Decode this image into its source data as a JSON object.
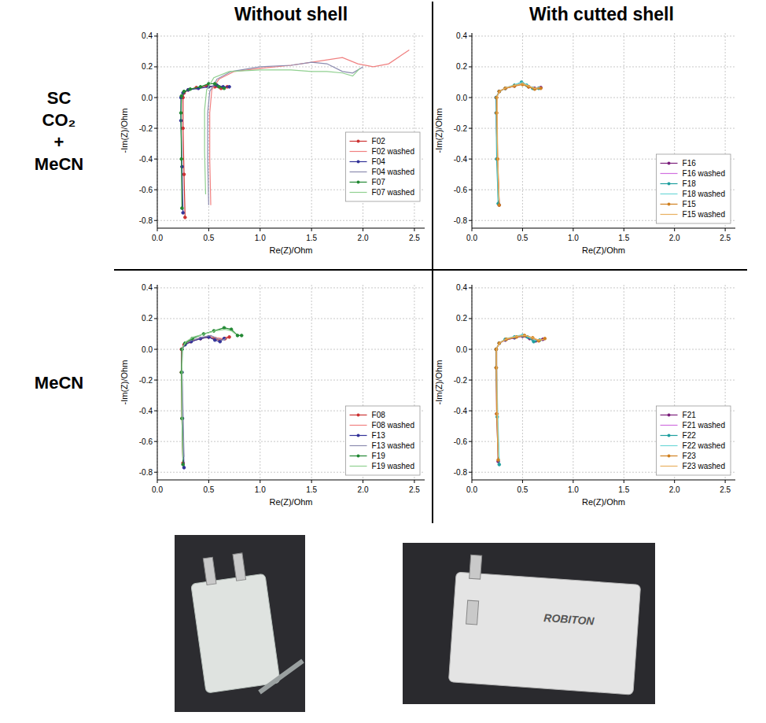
{
  "headers": {
    "columns": [
      "Without shell",
      "With cutted shell"
    ],
    "rows": [
      "SC CO₂ + MeCN",
      "MeCN"
    ]
  },
  "photos": {
    "texts": [
      "ROBITON"
    ]
  },
  "chart_data": [
    {
      "type": "line",
      "x_label": "Re(Z)/Ohm",
      "y_label": "-Im(Z)/Ohm",
      "xlim": [
        0,
        2.6
      ],
      "ylim": [
        -0.85,
        0.42
      ],
      "xticks": [
        {
          "value": 0,
          "label": "0.0"
        },
        0.5,
        {
          "value": 1,
          "label": "1.0"
        },
        1.5,
        {
          "value": 2,
          "label": "2.0"
        },
        2.5
      ],
      "yticks": [
        0.4,
        0.2,
        {
          "value": 0,
          "label": "0.0"
        },
        -0.2,
        -0.4,
        -0.6,
        -0.8
      ],
      "grid": true,
      "legend": "right",
      "series": [
        {
          "name": "F02",
          "color": "#cc3333",
          "marker": "circle",
          "line_style": "solid",
          "x": [
            0.27,
            0.26,
            0.25,
            0.25,
            0.26,
            0.3,
            0.38,
            0.48,
            0.56,
            0.62,
            0.68
          ],
          "values": [
            -0.78,
            -0.5,
            -0.2,
            0.0,
            0.03,
            0.05,
            0.065,
            0.075,
            0.07,
            0.06,
            0.07
          ]
        },
        {
          "name": "F02 washed",
          "color": "#f08080",
          "marker": "none",
          "line_style": "solid",
          "x": [
            0.52,
            0.51,
            0.51,
            0.53,
            0.6,
            0.75,
            1.0,
            1.3,
            1.6,
            1.8,
            1.95,
            2.1,
            2.25,
            2.45
          ],
          "values": [
            -0.7,
            -0.4,
            -0.1,
            0.05,
            0.12,
            0.17,
            0.19,
            0.21,
            0.24,
            0.26,
            0.22,
            0.2,
            0.22,
            0.31
          ]
        },
        {
          "name": "F04",
          "color": "#333399",
          "marker": "circle",
          "line_style": "solid",
          "x": [
            0.25,
            0.24,
            0.23,
            0.23,
            0.25,
            0.3,
            0.4,
            0.5,
            0.58,
            0.64,
            0.7
          ],
          "values": [
            -0.75,
            -0.45,
            -0.15,
            0.0,
            0.03,
            0.05,
            0.06,
            0.07,
            0.08,
            0.07,
            0.07
          ]
        },
        {
          "name": "F04 washed",
          "color": "#8c8cb0",
          "marker": "none",
          "line_style": "solid",
          "x": [
            0.5,
            0.49,
            0.49,
            0.51,
            0.58,
            0.72,
            1.0,
            1.3,
            1.5,
            1.65,
            1.8,
            1.9,
            2.0
          ],
          "values": [
            -0.7,
            -0.4,
            -0.1,
            0.04,
            0.12,
            0.17,
            0.2,
            0.21,
            0.23,
            0.22,
            0.17,
            0.16,
            0.2
          ]
        },
        {
          "name": "F07",
          "color": "#228833",
          "marker": "circle",
          "line_style": "solid",
          "x": [
            0.24,
            0.235,
            0.23,
            0.235,
            0.26,
            0.32,
            0.42,
            0.5,
            0.56,
            0.6,
            0.65
          ],
          "values": [
            -0.72,
            -0.4,
            -0.1,
            0.01,
            0.04,
            0.055,
            0.07,
            0.09,
            0.09,
            0.07,
            0.06
          ]
        },
        {
          "name": "F07 washed",
          "color": "#90d090",
          "marker": "none",
          "line_style": "solid",
          "x": [
            0.47,
            0.46,
            0.46,
            0.48,
            0.55,
            0.7,
            1.0,
            1.3,
            1.5,
            1.65,
            1.8,
            1.9,
            1.97
          ],
          "values": [
            -0.63,
            -0.35,
            -0.08,
            0.05,
            0.13,
            0.17,
            0.18,
            0.18,
            0.17,
            0.17,
            0.16,
            0.14,
            0.19
          ]
        }
      ]
    },
    {
      "type": "line",
      "x_label": "Re(Z)/Ohm",
      "y_label": "-Im(Z)/Ohm",
      "xlim": [
        0,
        2.6
      ],
      "ylim": [
        -0.85,
        0.42
      ],
      "xticks": [
        {
          "value": 0,
          "label": "0.0"
        },
        0.5,
        {
          "value": 1,
          "label": "1.0"
        },
        1.5,
        {
          "value": 2,
          "label": "2.0"
        },
        2.5
      ],
      "yticks": [
        0.4,
        0.2,
        {
          "value": 0,
          "label": "0.0"
        },
        -0.2,
        -0.4,
        -0.6,
        -0.8
      ],
      "grid": true,
      "legend": "lower right",
      "series": [
        {
          "name": "F16",
          "color": "#7b1f7b",
          "marker": "circle",
          "line_style": "solid",
          "x": [
            0.27,
            0.25,
            0.24,
            0.24,
            0.27,
            0.33,
            0.42,
            0.5,
            0.56,
            0.62,
            0.68
          ],
          "values": [
            -0.7,
            -0.4,
            -0.1,
            0.0,
            0.04,
            0.06,
            0.075,
            0.09,
            0.07,
            0.06,
            0.065
          ]
        },
        {
          "name": "F16 washed",
          "color": "#d070e0",
          "marker": "none",
          "line_style": "solid",
          "x": [
            0.27,
            0.25,
            0.245,
            0.245,
            0.28,
            0.34,
            0.43,
            0.5,
            0.56,
            0.62,
            0.67
          ],
          "values": [
            -0.68,
            -0.38,
            -0.1,
            0.01,
            0.045,
            0.065,
            0.08,
            0.095,
            0.075,
            0.06,
            0.07
          ]
        },
        {
          "name": "F18",
          "color": "#1f9f9f",
          "marker": "circle",
          "line_style": "solid",
          "x": [
            0.26,
            0.245,
            0.24,
            0.24,
            0.27,
            0.33,
            0.42,
            0.49,
            0.54,
            0.6,
            0.66
          ],
          "values": [
            -0.69,
            -0.4,
            -0.1,
            0.0,
            0.04,
            0.06,
            0.08,
            0.1,
            0.08,
            0.06,
            0.06
          ]
        },
        {
          "name": "F18 washed",
          "color": "#70d8d8",
          "marker": "none",
          "line_style": "solid",
          "x": [
            0.26,
            0.25,
            0.24,
            0.245,
            0.28,
            0.34,
            0.43,
            0.5,
            0.55,
            0.6,
            0.65
          ],
          "values": [
            -0.67,
            -0.38,
            -0.09,
            0.01,
            0.045,
            0.065,
            0.085,
            0.1,
            0.08,
            0.065,
            0.06
          ]
        },
        {
          "name": "F15",
          "color": "#d08020",
          "marker": "circle",
          "line_style": "solid",
          "x": [
            0.27,
            0.255,
            0.245,
            0.245,
            0.27,
            0.33,
            0.42,
            0.5,
            0.56,
            0.62,
            0.68
          ],
          "values": [
            -0.7,
            -0.4,
            -0.1,
            0.0,
            0.04,
            0.06,
            0.075,
            0.085,
            0.07,
            0.055,
            0.06
          ]
        },
        {
          "name": "F15 washed",
          "color": "#e8b060",
          "marker": "none",
          "line_style": "solid",
          "x": [
            0.27,
            0.255,
            0.25,
            0.25,
            0.28,
            0.34,
            0.43,
            0.5,
            0.56,
            0.62,
            0.67
          ],
          "values": [
            -0.68,
            -0.39,
            -0.1,
            0.01,
            0.045,
            0.065,
            0.08,
            0.09,
            0.075,
            0.06,
            0.065
          ]
        }
      ]
    },
    {
      "type": "line",
      "x_label": "Re(Z)/Ohm",
      "y_label": "-Im(Z)/Ohm",
      "xlim": [
        0,
        2.6
      ],
      "ylim": [
        -0.85,
        0.42
      ],
      "xticks": [
        {
          "value": 0,
          "label": "0.0"
        },
        0.5,
        {
          "value": 1,
          "label": "1.0"
        },
        1.5,
        {
          "value": 2,
          "label": "2.0"
        },
        2.5
      ],
      "yticks": [
        0.4,
        0.2,
        {
          "value": 0,
          "label": "0.0"
        },
        -0.2,
        -0.4,
        -0.6,
        -0.8
      ],
      "grid": true,
      "legend": "lower right",
      "series": [
        {
          "name": "F08",
          "color": "#cc3333",
          "marker": "circle",
          "line_style": "solid",
          "x": [
            0.25,
            0.24,
            0.235,
            0.235,
            0.26,
            0.32,
            0.42,
            0.5,
            0.56,
            0.61,
            0.66,
            0.7
          ],
          "values": [
            -0.74,
            -0.45,
            -0.15,
            0.0,
            0.03,
            0.05,
            0.07,
            0.08,
            0.07,
            0.06,
            0.07,
            0.08
          ]
        },
        {
          "name": "F08 washed",
          "color": "#f08080",
          "marker": "none",
          "line_style": "solid",
          "x": [
            0.25,
            0.24,
            0.24,
            0.24,
            0.27,
            0.33,
            0.43,
            0.52,
            0.58,
            0.63,
            0.68
          ],
          "values": [
            -0.72,
            -0.42,
            -0.12,
            0.01,
            0.04,
            0.055,
            0.075,
            0.085,
            0.075,
            0.07,
            0.08
          ]
        },
        {
          "name": "F13",
          "color": "#333399",
          "marker": "circle",
          "line_style": "solid",
          "x": [
            0.26,
            0.245,
            0.24,
            0.24,
            0.27,
            0.33,
            0.42,
            0.5,
            0.56,
            0.61,
            0.65
          ],
          "values": [
            -0.77,
            -0.45,
            -0.15,
            0.0,
            0.03,
            0.05,
            0.07,
            0.08,
            0.06,
            0.05,
            0.07
          ]
        },
        {
          "name": "F13 washed",
          "color": "#8c8cb0",
          "marker": "none",
          "line_style": "solid",
          "x": [
            0.26,
            0.25,
            0.24,
            0.245,
            0.27,
            0.34,
            0.44,
            0.52,
            0.58,
            0.63,
            0.67
          ],
          "values": [
            -0.7,
            -0.4,
            -0.1,
            0.01,
            0.04,
            0.06,
            0.08,
            0.09,
            0.07,
            0.06,
            0.07
          ]
        },
        {
          "name": "F19",
          "color": "#228833",
          "marker": "circle",
          "line_style": "solid",
          "x": [
            0.25,
            0.24,
            0.235,
            0.24,
            0.27,
            0.34,
            0.45,
            0.55,
            0.65,
            0.72,
            0.78,
            0.82
          ],
          "values": [
            -0.75,
            -0.45,
            -0.15,
            0.0,
            0.04,
            0.07,
            0.1,
            0.12,
            0.14,
            0.13,
            0.09,
            0.09
          ]
        },
        {
          "name": "F19 washed",
          "color": "#90d090",
          "marker": "none",
          "line_style": "solid",
          "x": [
            0.25,
            0.24,
            0.24,
            0.245,
            0.28,
            0.35,
            0.46,
            0.56,
            0.66,
            0.72,
            0.76
          ],
          "values": [
            -0.72,
            -0.42,
            -0.12,
            0.01,
            0.05,
            0.08,
            0.1,
            0.12,
            0.13,
            0.12,
            0.1
          ]
        }
      ]
    },
    {
      "type": "line",
      "x_label": "Re(Z)/Ohm",
      "y_label": "-Im(Z)/Ohm",
      "xlim": [
        0,
        2.6
      ],
      "ylim": [
        -0.85,
        0.42
      ],
      "xticks": [
        {
          "value": 0,
          "label": "0.0"
        },
        0.5,
        {
          "value": 1,
          "label": "1.0"
        },
        1.5,
        {
          "value": 2,
          "label": "2.0"
        },
        2.5
      ],
      "yticks": [
        0.4,
        0.2,
        {
          "value": 0,
          "label": "0.0"
        },
        -0.2,
        -0.4,
        -0.6,
        -0.8
      ],
      "grid": true,
      "legend": "lower right",
      "series": [
        {
          "name": "F21",
          "color": "#7b1f7b",
          "marker": "circle",
          "line_style": "solid",
          "x": [
            0.26,
            0.245,
            0.24,
            0.24,
            0.27,
            0.33,
            0.42,
            0.5,
            0.57,
            0.63,
            0.7
          ],
          "values": [
            -0.73,
            -0.42,
            -0.12,
            0.0,
            0.04,
            0.06,
            0.075,
            0.085,
            0.07,
            0.055,
            0.065
          ]
        },
        {
          "name": "F21 washed",
          "color": "#d070e0",
          "marker": "none",
          "line_style": "solid",
          "x": [
            0.26,
            0.25,
            0.245,
            0.245,
            0.28,
            0.34,
            0.43,
            0.51,
            0.57,
            0.63,
            0.69
          ],
          "values": [
            -0.71,
            -0.4,
            -0.1,
            0.01,
            0.045,
            0.065,
            0.08,
            0.09,
            0.075,
            0.06,
            0.065
          ]
        },
        {
          "name": "F22",
          "color": "#1f9f9f",
          "marker": "circle",
          "line_style": "solid",
          "x": [
            0.27,
            0.25,
            0.24,
            0.24,
            0.27,
            0.33,
            0.42,
            0.5,
            0.55,
            0.61,
            0.67
          ],
          "values": [
            -0.75,
            -0.44,
            -0.12,
            0.0,
            0.04,
            0.065,
            0.08,
            0.09,
            0.08,
            0.05,
            0.06
          ]
        },
        {
          "name": "F22 washed",
          "color": "#70d8d8",
          "marker": "none",
          "line_style": "solid",
          "x": [
            0.27,
            0.255,
            0.245,
            0.245,
            0.28,
            0.34,
            0.43,
            0.5,
            0.56,
            0.62,
            0.68
          ],
          "values": [
            -0.72,
            -0.41,
            -0.1,
            0.01,
            0.045,
            0.07,
            0.085,
            0.095,
            0.08,
            0.06,
            0.065
          ]
        },
        {
          "name": "F23",
          "color": "#d08020",
          "marker": "circle",
          "line_style": "solid",
          "x": [
            0.26,
            0.245,
            0.24,
            0.24,
            0.27,
            0.34,
            0.44,
            0.52,
            0.6,
            0.66,
            0.72
          ],
          "values": [
            -0.72,
            -0.42,
            -0.12,
            0.0,
            0.04,
            0.065,
            0.08,
            0.09,
            0.075,
            0.055,
            0.07
          ]
        },
        {
          "name": "F23 washed",
          "color": "#e8b060",
          "marker": "none",
          "line_style": "solid",
          "x": [
            0.26,
            0.25,
            0.245,
            0.245,
            0.28,
            0.35,
            0.45,
            0.53,
            0.6,
            0.66,
            0.71
          ],
          "values": [
            -0.7,
            -0.4,
            -0.1,
            0.01,
            0.045,
            0.07,
            0.085,
            0.09,
            0.075,
            0.06,
            0.065
          ]
        }
      ]
    }
  ]
}
